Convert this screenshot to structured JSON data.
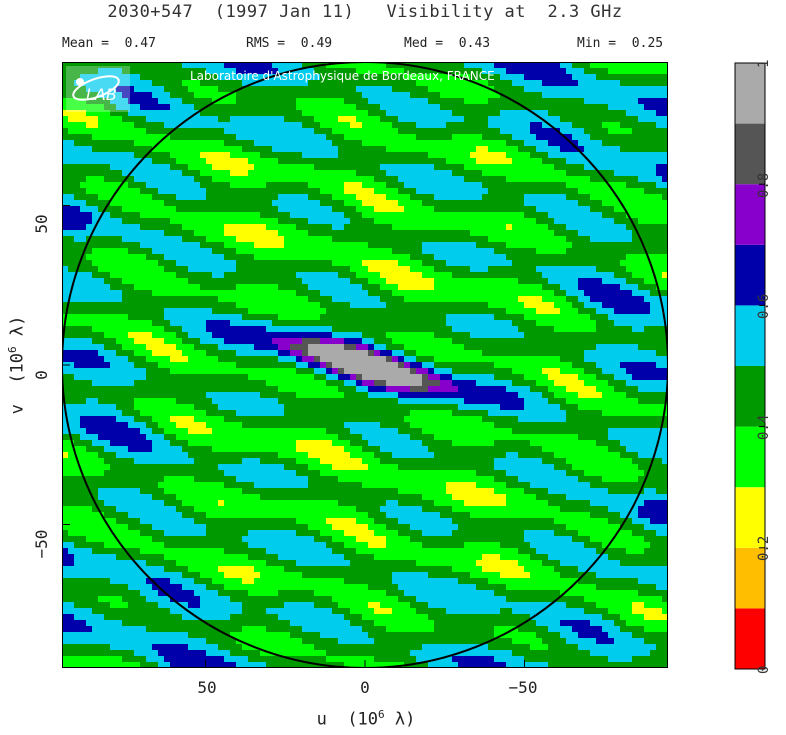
{
  "header": {
    "title": "2030+547  (1997 Jan 11)   Visibility at  2.3 GHz",
    "mean": "Mean =  0.47",
    "rms": "RMS =  0.49",
    "med": "Med =  0.43",
    "min": "Min =  0.25"
  },
  "watermark": {
    "text": "Laboratoire d'Astrophysique de Bordeaux, FRANCE",
    "logo_text": "LAB"
  },
  "chart_data": {
    "type": "heatmap",
    "title": "2030+547  (1997 Jan 11)   Visibility at  2.3 GHz",
    "xlabel_prefix": "u  (10",
    "xlabel_exp": "6",
    "xlabel_suffix": " λ)",
    "ylabel_prefix": "v  (10",
    "ylabel_exp": "6",
    "ylabel_suffix": " λ)",
    "x_ticks": [
      "50",
      "0",
      "−50"
    ],
    "y_ticks": [
      "50",
      "0",
      "−50"
    ],
    "xlim": [
      95,
      -95
    ],
    "ylim": [
      -95,
      95
    ],
    "uv_circle_radius": 95,
    "colorbar": {
      "levels": [
        0,
        0.1,
        0.2,
        0.3,
        0.4,
        0.5,
        0.6,
        0.7,
        0.8,
        0.9,
        1.0
      ],
      "colors": [
        "#ff0000",
        "#ffbf00",
        "#ffff00",
        "#00ff00",
        "#009900",
        "#00ccee",
        "#0000aa",
        "#8800cc",
        "#555555",
        "#aaaaaa"
      ],
      "tick_labels": [
        "0",
        "0.2",
        "0.4",
        "0.6",
        "0.8",
        "1"
      ],
      "tick_values": [
        0,
        0.2,
        0.4,
        0.6,
        0.8,
        1.0
      ]
    },
    "stats": {
      "mean": 0.47,
      "rms": 0.49,
      "median": 0.43,
      "min": 0.25
    }
  }
}
